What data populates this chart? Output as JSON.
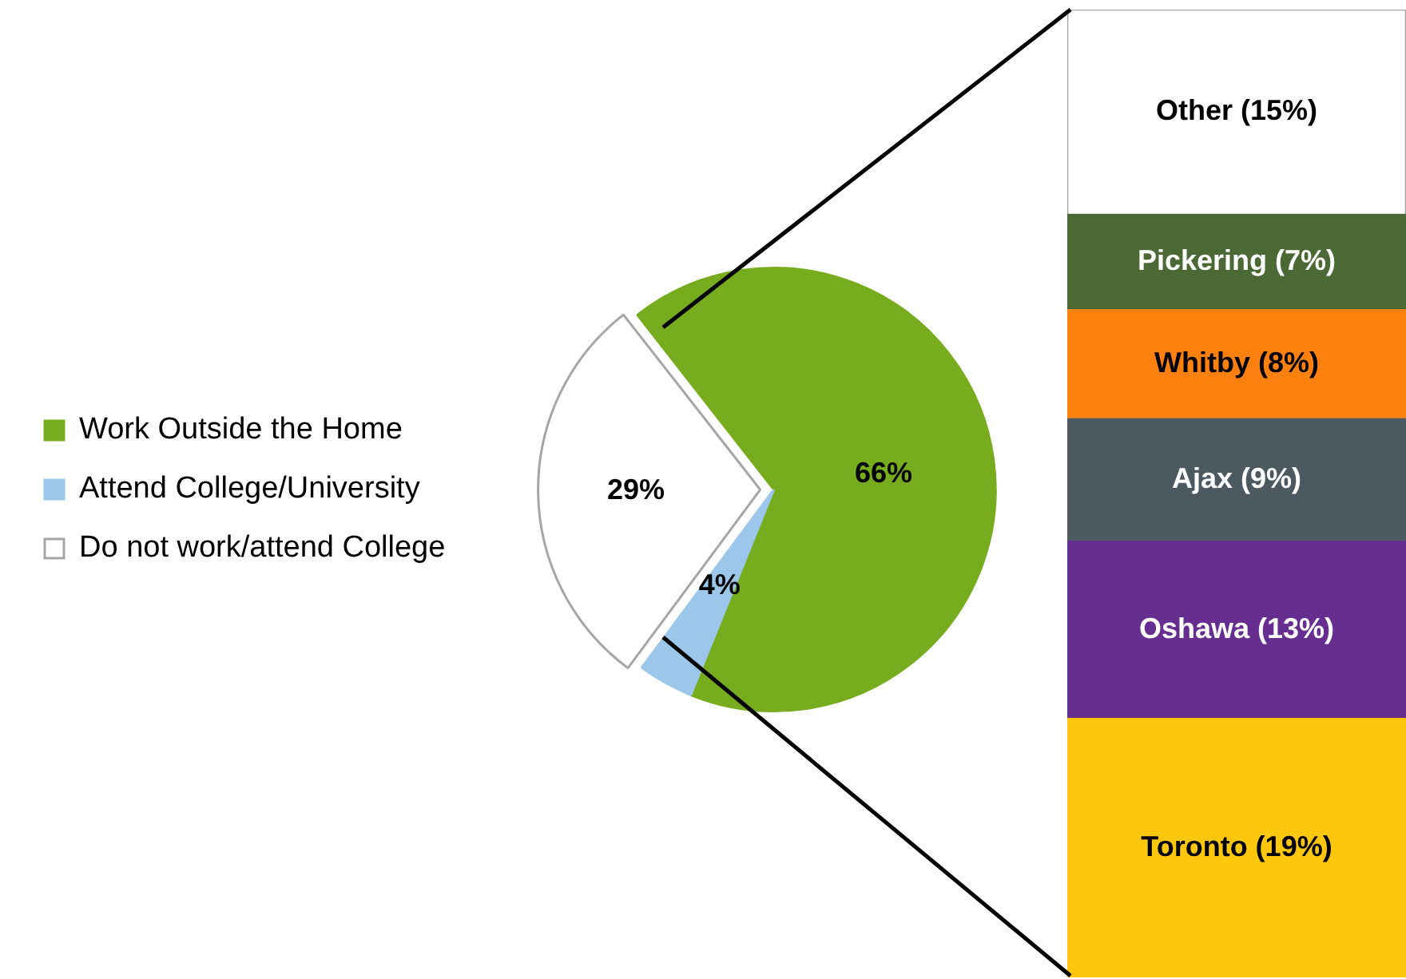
{
  "chart_data": [
    {
      "type": "pie",
      "categories": [
        "Work Outside the Home",
        "Attend College/University",
        "Do not work/attend College"
      ],
      "values": [
        66,
        4,
        29
      ],
      "colors": [
        "#77ac1e",
        "#9cc7ea",
        "#ffffff"
      ],
      "value_labels": [
        "66%",
        "4%",
        "29%"
      ],
      "legend": "left"
    },
    {
      "type": "bar",
      "stacked": true,
      "categories": [
        null
      ],
      "series": [
        {
          "color": "#fdc70d",
          "values": [
            19
          ],
          "value_labels": [
            "Toronto (19%)"
          ]
        },
        {
          "color": "#662e91",
          "values": [
            13
          ],
          "value_labels": [
            "Oshawa (13%)"
          ]
        },
        {
          "color": "#4c5960",
          "values": [
            9
          ],
          "value_labels": [
            "Ajax (9%)"
          ]
        },
        {
          "color": "#fe8110",
          "values": [
            8
          ],
          "value_labels": [
            "Whitby (8%)"
          ]
        },
        {
          "color": "#4b6935",
          "values": [
            7
          ],
          "value_labels": [
            "Pickering (7%)"
          ]
        },
        {
          "color": "#ffffff",
          "values": [
            15
          ],
          "value_labels": [
            "Other (15%)"
          ]
        }
      ]
    }
  ]
}
